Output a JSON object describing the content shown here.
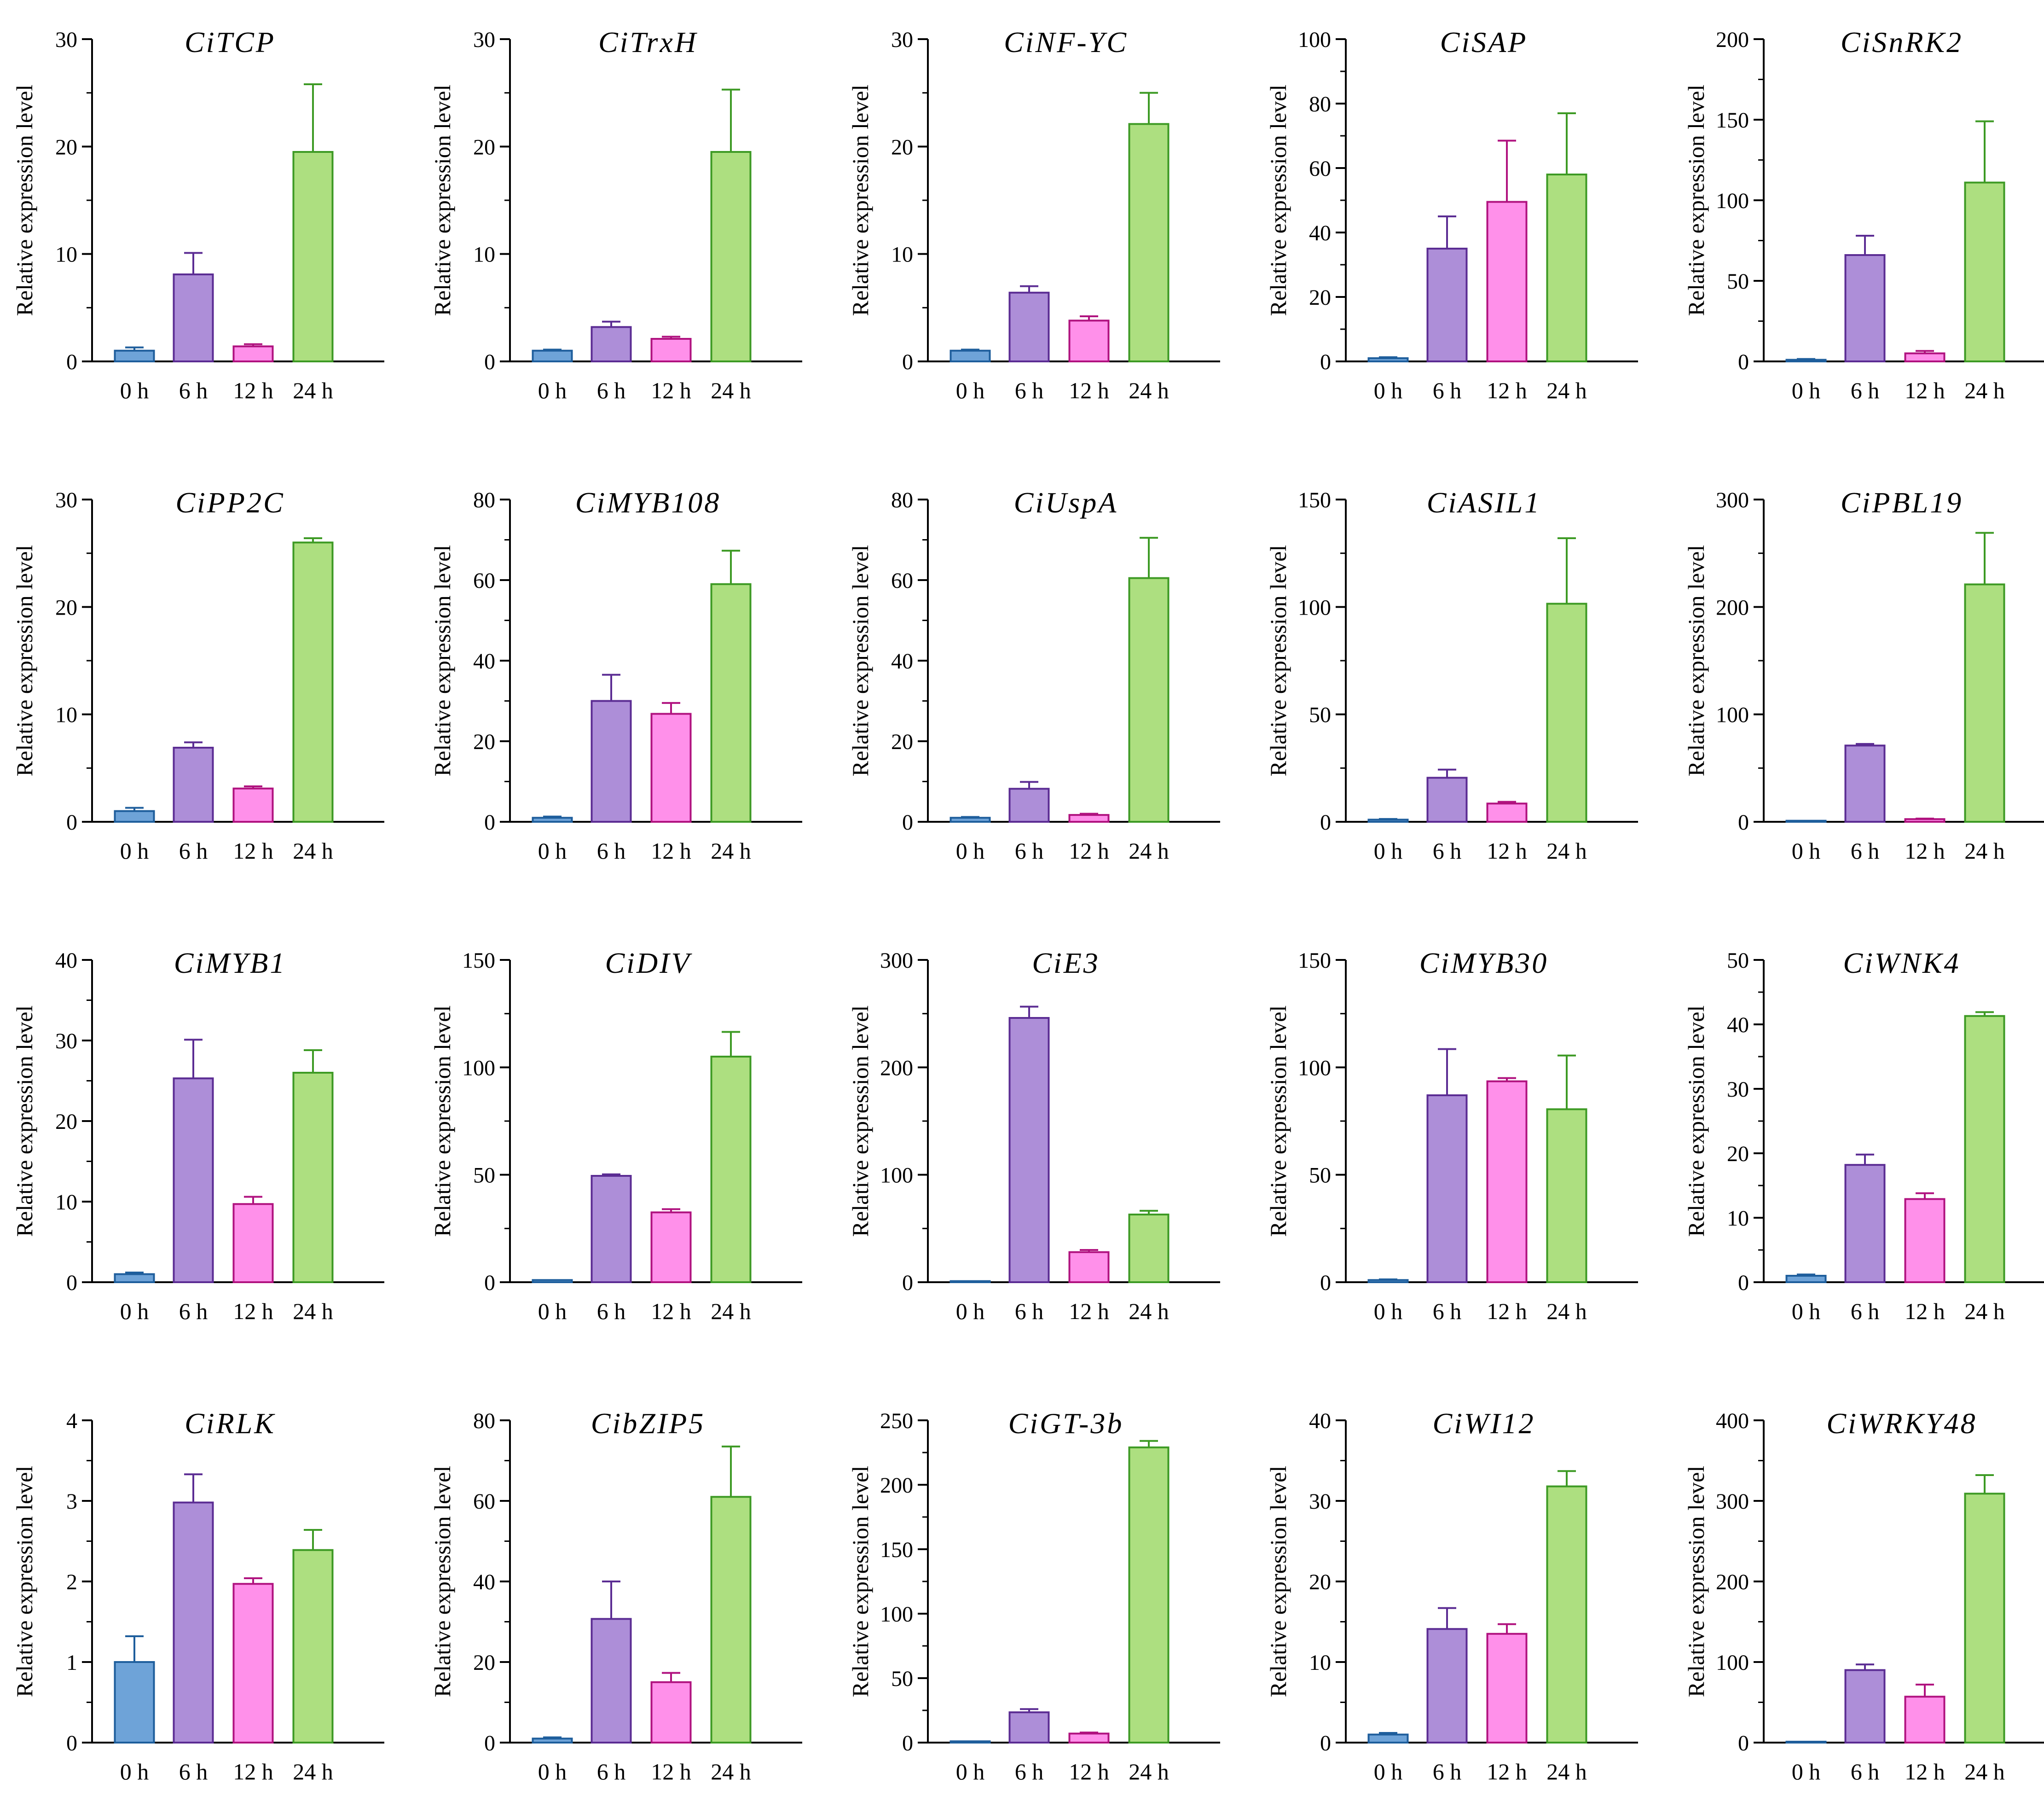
{
  "categories": [
    "0 h",
    "6 h",
    "12 h",
    "24 h"
  ],
  "ylabel": "Relative expression level",
  "colors": {
    "fills": [
      "#6ea3d8",
      "#ad8ed8",
      "#ff90ea",
      "#addf80"
    ],
    "strokes": [
      "#1e5e9c",
      "#5b2c93",
      "#b0127f",
      "#3d9a24"
    ]
  },
  "chart_data": [
    {
      "type": "bar",
      "title": "CiTCP",
      "categories": [
        "0 h",
        "6 h",
        "12 h",
        "24 h"
      ],
      "values": [
        1.0,
        8.1,
        1.4,
        19.5
      ],
      "errors": [
        0.3,
        2.0,
        0.2,
        6.3
      ],
      "ylim": [
        0,
        30
      ],
      "yticks": [
        0,
        10,
        20,
        30
      ],
      "ylabel": "Relative expression level"
    },
    {
      "type": "bar",
      "title": "CiTrxH",
      "categories": [
        "0 h",
        "6 h",
        "12 h",
        "24 h"
      ],
      "values": [
        1.0,
        3.2,
        2.1,
        19.5
      ],
      "errors": [
        0.1,
        0.5,
        0.2,
        5.8
      ],
      "ylim": [
        0,
        30
      ],
      "yticks": [
        0,
        10,
        20,
        30
      ],
      "ylabel": "Relative expression level"
    },
    {
      "type": "bar",
      "title": "CiNF-YC",
      "categories": [
        "0 h",
        "6 h",
        "12 h",
        "24 h"
      ],
      "values": [
        1.0,
        6.4,
        3.8,
        22.1
      ],
      "errors": [
        0.1,
        0.6,
        0.4,
        2.9
      ],
      "ylim": [
        0,
        30
      ],
      "yticks": [
        0,
        10,
        20,
        30
      ],
      "ylabel": "Relative expression level"
    },
    {
      "type": "bar",
      "title": "CiSAP",
      "categories": [
        "0 h",
        "6 h",
        "12 h",
        "24 h"
      ],
      "values": [
        1.0,
        35.0,
        49.5,
        58.0
      ],
      "errors": [
        0.3,
        10.0,
        19.0,
        19.0
      ],
      "ylim": [
        0,
        100
      ],
      "yticks": [
        0,
        20,
        40,
        60,
        80,
        100
      ],
      "ylabel": "Relative expression level"
    },
    {
      "type": "bar",
      "title": "CiSnRK2",
      "categories": [
        "0 h",
        "6 h",
        "12 h",
        "24 h"
      ],
      "values": [
        1.0,
        66.0,
        5.0,
        111.0
      ],
      "errors": [
        0.5,
        12.0,
        1.5,
        38.0
      ],
      "ylim": [
        0,
        200
      ],
      "yticks": [
        0,
        50,
        100,
        150,
        200
      ],
      "ylabel": "Relative expression level"
    },
    {
      "type": "bar",
      "title": "CiPP2C",
      "categories": [
        "0 h",
        "6 h",
        "12 h",
        "24 h"
      ],
      "values": [
        1.0,
        6.9,
        3.1,
        26.0
      ],
      "errors": [
        0.3,
        0.5,
        0.2,
        0.4
      ],
      "ylim": [
        0,
        30
      ],
      "yticks": [
        0,
        10,
        20,
        30
      ],
      "ylabel": "Relative expression level"
    },
    {
      "type": "bar",
      "title": "CiMYB108",
      "categories": [
        "0 h",
        "6 h",
        "12 h",
        "24 h"
      ],
      "values": [
        1.0,
        30.0,
        26.8,
        59.0
      ],
      "errors": [
        0.3,
        6.5,
        2.7,
        8.3
      ],
      "ylim": [
        0,
        80
      ],
      "yticks": [
        0,
        20,
        40,
        60,
        80
      ],
      "ylabel": "Relative expression level"
    },
    {
      "type": "bar",
      "title": "CiUspA",
      "categories": [
        "0 h",
        "6 h",
        "12 h",
        "24 h"
      ],
      "values": [
        1.0,
        8.2,
        1.7,
        60.5
      ],
      "errors": [
        0.2,
        1.7,
        0.3,
        10.0
      ],
      "ylim": [
        0,
        80
      ],
      "yticks": [
        0,
        20,
        40,
        60,
        80
      ],
      "ylabel": "Relative expression level"
    },
    {
      "type": "bar",
      "title": "CiASIL1",
      "categories": [
        "0 h",
        "6 h",
        "12 h",
        "24 h"
      ],
      "values": [
        1.0,
        20.5,
        8.5,
        101.5
      ],
      "errors": [
        0.3,
        3.8,
        0.8,
        30.5
      ],
      "ylim": [
        0,
        150
      ],
      "yticks": [
        0,
        50,
        100,
        150
      ],
      "ylabel": "Relative expression level"
    },
    {
      "type": "bar",
      "title": "CiPBL19",
      "categories": [
        "0 h",
        "6 h",
        "12 h",
        "24 h"
      ],
      "values": [
        1.0,
        71.0,
        2.5,
        221.0
      ],
      "errors": [
        0.2,
        1.5,
        0.5,
        48.0
      ],
      "ylim": [
        0,
        300
      ],
      "yticks": [
        0,
        100,
        200,
        300
      ],
      "ylabel": "Relative expression level"
    },
    {
      "type": "bar",
      "title": "CiMYB1",
      "categories": [
        "0 h",
        "6 h",
        "12 h",
        "24 h"
      ],
      "values": [
        1.0,
        25.3,
        9.7,
        26.0
      ],
      "errors": [
        0.2,
        4.8,
        0.9,
        2.8
      ],
      "ylim": [
        0,
        40
      ],
      "yticks": [
        0,
        10,
        20,
        30,
        40
      ],
      "ylabel": "Relative expression level"
    },
    {
      "type": "bar",
      "title": "CiDIV",
      "categories": [
        "0 h",
        "6 h",
        "12 h",
        "24 h"
      ],
      "values": [
        1.0,
        49.5,
        32.5,
        105.0
      ],
      "errors": [
        0.2,
        0.7,
        1.5,
        11.5
      ],
      "ylim": [
        0,
        150
      ],
      "yticks": [
        0,
        50,
        100,
        150
      ],
      "ylabel": "Relative expression level"
    },
    {
      "type": "bar",
      "title": "CiE3",
      "categories": [
        "0 h",
        "6 h",
        "12 h",
        "24 h"
      ],
      "values": [
        1.0,
        246.0,
        28.0,
        63.0
      ],
      "errors": [
        0.3,
        10.5,
        2.0,
        3.5
      ],
      "ylim": [
        0,
        300
      ],
      "yticks": [
        0,
        100,
        200,
        300
      ],
      "ylabel": "Relative expression level"
    },
    {
      "type": "bar",
      "title": "CiMYB30",
      "categories": [
        "0 h",
        "6 h",
        "12 h",
        "24 h"
      ],
      "values": [
        1.0,
        87.0,
        93.5,
        80.5
      ],
      "errors": [
        0.3,
        21.5,
        1.5,
        25.0
      ],
      "ylim": [
        0,
        150
      ],
      "yticks": [
        0,
        50,
        100,
        150
      ],
      "ylabel": "Relative expression level"
    },
    {
      "type": "bar",
      "title": "CiWNK4",
      "categories": [
        "0 h",
        "6 h",
        "12 h",
        "24 h"
      ],
      "values": [
        1.0,
        18.2,
        12.9,
        41.3
      ],
      "errors": [
        0.2,
        1.6,
        0.9,
        0.6
      ],
      "ylim": [
        0,
        50
      ],
      "yticks": [
        0,
        10,
        20,
        30,
        40,
        50
      ],
      "ylabel": "Relative expression level"
    },
    {
      "type": "bar",
      "title": "CiRLK",
      "categories": [
        "0 h",
        "6 h",
        "12 h",
        "24 h"
      ],
      "values": [
        1.0,
        2.98,
        1.97,
        2.39
      ],
      "errors": [
        0.32,
        0.35,
        0.07,
        0.25
      ],
      "ylim": [
        0,
        4
      ],
      "yticks": [
        0,
        1,
        2,
        3,
        4
      ],
      "ylabel": "Relative expression level"
    },
    {
      "type": "bar",
      "title": "CibZIP5",
      "categories": [
        "0 h",
        "6 h",
        "12 h",
        "24 h"
      ],
      "values": [
        1.0,
        30.7,
        15.0,
        61.0
      ],
      "errors": [
        0.3,
        9.3,
        2.3,
        12.5
      ],
      "ylim": [
        0,
        80
      ],
      "yticks": [
        0,
        20,
        40,
        60,
        80
      ],
      "ylabel": "Relative expression level"
    },
    {
      "type": "bar",
      "title": "CiGT-3b",
      "categories": [
        "0 h",
        "6 h",
        "12 h",
        "24 h"
      ],
      "values": [
        1.0,
        23.5,
        7.0,
        229.0
      ],
      "errors": [
        0.3,
        2.5,
        0.8,
        5.0
      ],
      "ylim": [
        0,
        250
      ],
      "yticks": [
        0,
        50,
        100,
        150,
        200,
        250
      ],
      "ylabel": "Relative expression level"
    },
    {
      "type": "bar",
      "title": "CiWI12",
      "categories": [
        "0 h",
        "6 h",
        "12 h",
        "24 h"
      ],
      "values": [
        1.0,
        14.1,
        13.5,
        31.8
      ],
      "errors": [
        0.2,
        2.6,
        1.2,
        1.9
      ],
      "ylim": [
        0,
        40
      ],
      "yticks": [
        0,
        10,
        20,
        30,
        40
      ],
      "ylabel": "Relative expression level"
    },
    {
      "type": "bar",
      "title": "CiWRKY48",
      "categories": [
        "0 h",
        "6 h",
        "12 h",
        "24 h"
      ],
      "values": [
        1.0,
        90.0,
        57.0,
        309.0
      ],
      "errors": [
        0.3,
        7.0,
        15.0,
        23.0
      ],
      "ylim": [
        0,
        400
      ],
      "yticks": [
        0,
        100,
        200,
        300,
        400
      ],
      "ylabel": "Relative expression level"
    }
  ]
}
